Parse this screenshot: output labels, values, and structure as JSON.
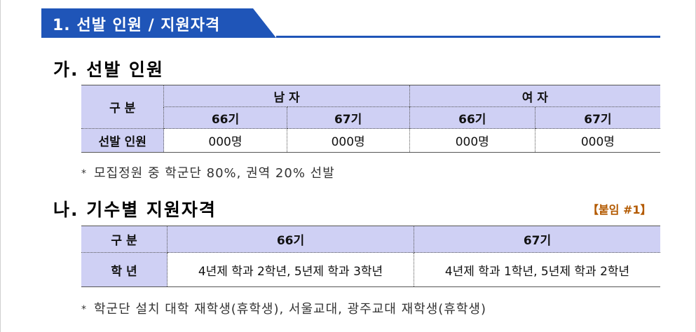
{
  "section": {
    "title": "1. 선발 인원 / 지원자격"
  },
  "subsection_a": {
    "title": "가. 선발 인원",
    "table": {
      "corner": "구  분",
      "groups": [
        "남 자",
        "여 자"
      ],
      "subheaders": [
        "66기",
        "67기",
        "66기",
        "67기"
      ],
      "row_label": "선발 인원",
      "values": [
        "000명",
        "000명",
        "000명",
        "000명"
      ]
    },
    "note_marker": "*",
    "note": "모집정원 중 학군단 80%, 권역 20% 선발"
  },
  "subsection_b": {
    "title": "나. 기수별 지원자격",
    "attachment": "【붙임 #1】",
    "table": {
      "corner": "구  분",
      "headers": [
        "66기",
        "67기"
      ],
      "row_label": "학  년",
      "values": [
        "4년제 학과 2학년, 5년제 학과 3학년",
        "4년제 학과 1학년, 5년제 학과 2학년"
      ]
    },
    "note_marker": "*",
    "note": "학군단 설치 대학 재학생(휴학생), 서울교대, 광주교대 재학생(휴학생)"
  },
  "colors": {
    "banner": "#1f55b8",
    "header_fill": "#cfd0f4",
    "attachment": "#b35a00"
  }
}
